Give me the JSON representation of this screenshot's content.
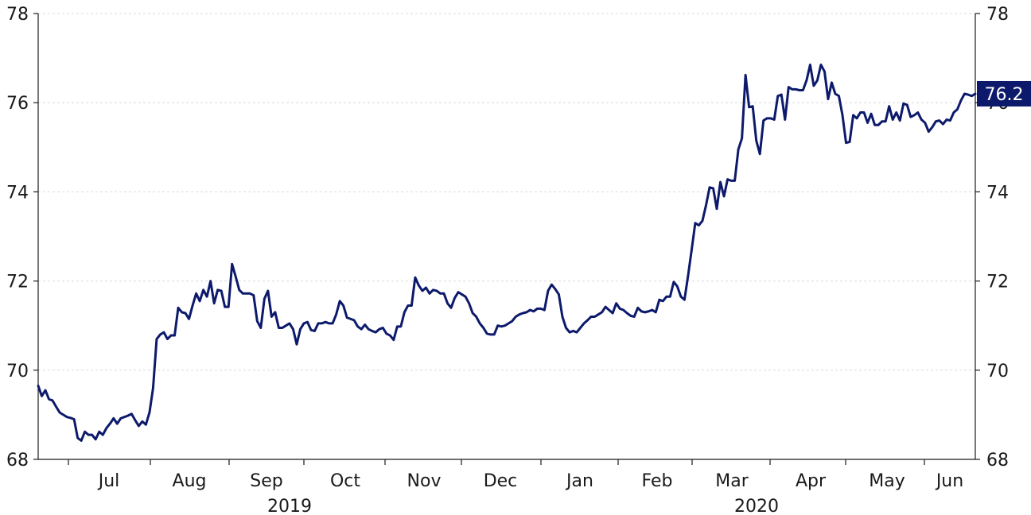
{
  "chart_data": {
    "type": "line",
    "title": "",
    "xlabel": "",
    "ylabel": "",
    "ylim": [
      68,
      78
    ],
    "y_ticks": [
      "68",
      "70",
      "72",
      "74",
      "76",
      "78"
    ],
    "y_axes": "both",
    "grid": "horizontal dotted",
    "month_labels": [
      "Jul",
      "Aug",
      "Sep",
      "Oct",
      "Nov",
      "Dec",
      "Jan",
      "Feb",
      "Mar",
      "Apr",
      "May",
      "Jun"
    ],
    "year_labels": [
      "2019",
      "2020"
    ],
    "last_value_label": "76.2",
    "colors": {
      "line": "#0d1a6b",
      "badge": "#0d1a6b"
    },
    "series": [
      {
        "values": [
          69.65,
          69.42,
          69.55,
          69.35,
          69.32,
          69.18,
          69.05,
          69.0,
          68.95,
          68.93,
          68.9,
          68.48,
          68.42,
          68.62,
          68.55,
          68.55,
          68.45,
          68.62,
          68.55,
          68.7,
          68.8,
          68.92,
          68.8,
          68.92,
          68.95,
          68.98,
          69.02,
          68.88,
          68.75,
          68.85,
          68.78,
          69.05,
          69.6,
          70.7,
          70.8,
          70.85,
          70.7,
          70.78,
          70.78,
          71.4,
          71.3,
          71.28,
          71.15,
          71.45,
          71.72,
          71.55,
          71.8,
          71.65,
          72.0,
          71.5,
          71.8,
          71.78,
          71.42,
          71.42,
          72.38,
          72.1,
          71.8,
          71.72,
          71.72,
          71.72,
          71.68,
          71.1,
          70.95,
          71.6,
          71.78,
          71.2,
          71.3,
          70.95,
          70.95,
          71.0,
          71.05,
          70.92,
          70.58,
          70.92,
          71.05,
          71.08,
          70.9,
          70.88,
          71.05,
          71.05,
          71.08,
          71.05,
          71.05,
          71.25,
          71.55,
          71.45,
          71.18,
          71.15,
          71.12,
          70.98,
          70.92,
          71.02,
          70.92,
          70.88,
          70.85,
          70.92,
          70.95,
          70.82,
          70.78,
          70.68,
          70.98,
          70.98,
          71.3,
          71.45,
          71.45,
          72.08,
          71.9,
          71.78,
          71.85,
          71.72,
          71.8,
          71.78,
          71.72,
          71.72,
          71.5,
          71.4,
          71.62,
          71.75,
          71.7,
          71.65,
          71.5,
          71.28,
          71.2,
          71.05,
          70.95,
          70.82,
          70.8,
          70.8,
          71.0,
          70.98,
          71.0,
          71.05,
          71.1,
          71.2,
          71.25,
          71.28,
          71.3,
          71.35,
          71.32,
          71.38,
          71.38,
          71.35,
          71.78,
          71.92,
          71.82,
          71.7,
          71.2,
          70.95,
          70.85,
          70.88,
          70.85,
          70.95,
          71.05,
          71.12,
          71.2,
          71.2,
          71.25,
          71.3,
          71.42,
          71.35,
          71.28,
          71.5,
          71.38,
          71.35,
          71.28,
          71.22,
          71.2,
          71.4,
          71.32,
          71.3,
          71.32,
          71.35,
          71.3,
          71.58,
          71.55,
          71.65,
          71.65,
          71.98,
          71.88,
          71.65,
          71.58,
          72.12,
          72.7,
          73.3,
          73.25,
          73.35,
          73.7,
          74.1,
          74.08,
          73.62,
          74.22,
          73.9,
          74.28,
          74.25,
          74.25,
          74.95,
          75.2,
          76.62,
          75.9,
          75.92,
          75.15,
          74.85,
          75.6,
          75.65,
          75.65,
          75.62,
          76.15,
          76.18,
          75.62,
          76.35,
          76.3,
          76.3,
          76.28,
          76.28,
          76.5,
          76.85,
          76.38,
          76.5,
          76.85,
          76.7,
          76.08,
          76.45,
          76.2,
          76.15,
          75.72,
          75.1,
          75.12,
          75.72,
          75.65,
          75.78,
          75.78,
          75.55,
          75.75,
          75.5,
          75.5,
          75.58,
          75.58,
          75.92,
          75.62,
          75.78,
          75.6,
          75.98,
          75.95,
          75.68,
          75.72,
          75.78,
          75.62,
          75.55,
          75.35,
          75.45,
          75.58,
          75.6,
          75.52,
          75.62,
          75.6,
          75.78,
          75.85,
          76.05,
          76.2,
          76.18,
          76.15,
          76.2
        ]
      }
    ]
  }
}
